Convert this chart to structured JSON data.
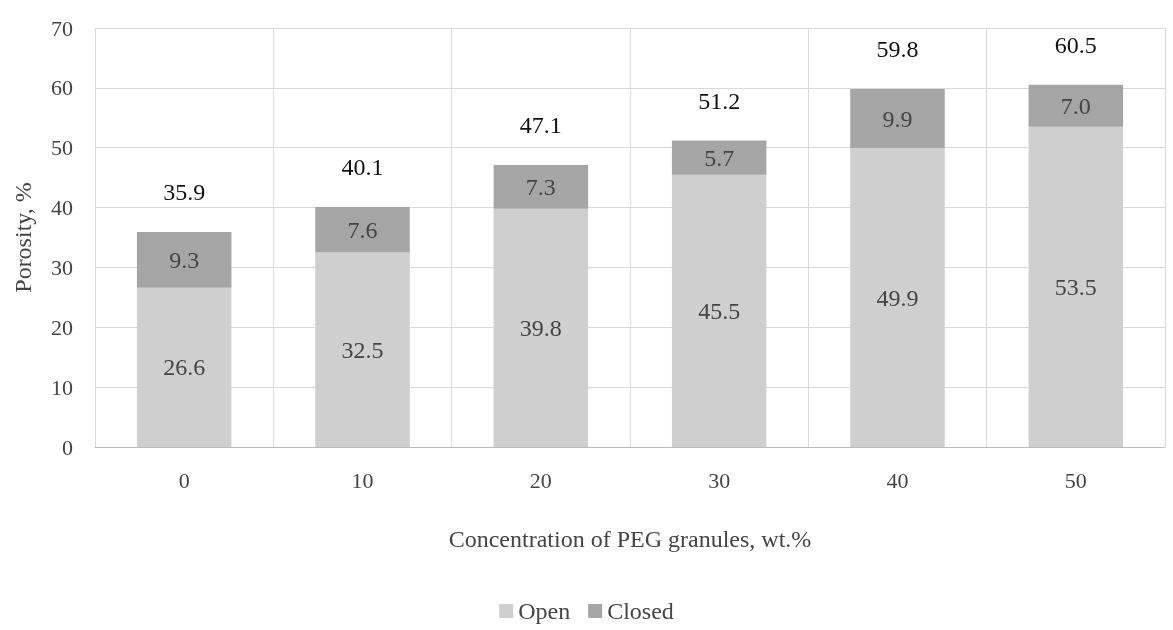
{
  "chart_data": {
    "type": "bar",
    "stacked": true,
    "xlabel": "Concentration of PEG granules, wt.%",
    "ylabel": "Porosity, %",
    "categories": [
      "0",
      "10",
      "20",
      "30",
      "40",
      "50"
    ],
    "series": [
      {
        "name": "Open",
        "color": "#d0cfcf",
        "values": [
          26.6,
          32.5,
          39.8,
          45.5,
          49.9,
          53.5
        ],
        "value_labels": [
          "26.6",
          "32.5",
          "39.8",
          "45.5",
          "49.9",
          "53.5"
        ]
      },
      {
        "name": "Closed",
        "color": "#a6a5a5",
        "values": [
          9.3,
          7.6,
          7.3,
          5.7,
          9.9,
          7.0
        ],
        "value_labels": [
          "9.3",
          "7.6",
          "7.3",
          "5.7",
          "9.9",
          "7.0"
        ]
      }
    ],
    "totals": [
      "35.9",
      "40.1",
      "47.1",
      "51.2",
      "59.8",
      "60.5"
    ],
    "ylim": [
      0,
      70
    ],
    "yticks": [
      0,
      10,
      20,
      30,
      40,
      50,
      60,
      70
    ],
    "grid": true,
    "legend": "bottom"
  }
}
